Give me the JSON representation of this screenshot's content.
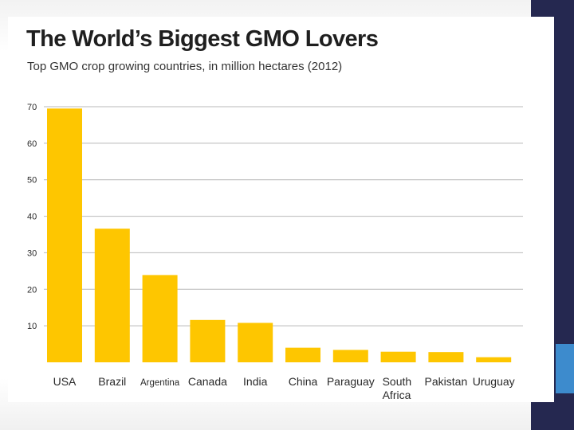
{
  "chart_data": {
    "type": "bar",
    "title": "The World’s Biggest GMO Lovers",
    "subtitle": "Top GMO crop growing countries, in million hectares (2012)",
    "categories": [
      "USA",
      "Brazil",
      "Argentina",
      "Canada",
      "India",
      "China",
      "Paraguay",
      "South Africa",
      "Pakistan",
      "Uruguay"
    ],
    "values": [
      69.5,
      36.6,
      23.9,
      11.6,
      10.8,
      4.0,
      3.4,
      2.9,
      2.8,
      1.4
    ],
    "yticks": [
      10,
      20,
      30,
      40,
      50,
      60,
      70
    ],
    "ylim": [
      0,
      70
    ],
    "xlabel": "",
    "ylabel": "",
    "grid": true,
    "bar_color": "#fec600"
  },
  "colors": {
    "gridline": "#b9b9b9",
    "text": "#2a2a2a",
    "side_band": "#252850",
    "side_accent": "#3d8bcd"
  }
}
